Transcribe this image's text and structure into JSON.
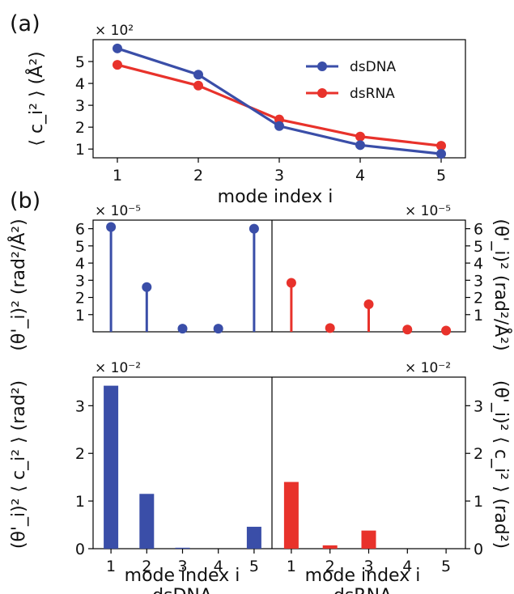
{
  "figure": {
    "panel_a_label": "(a)",
    "panel_b_label": "(b)"
  },
  "chart_data": [
    {
      "id": "a",
      "type": "line",
      "x": [
        1,
        2,
        3,
        4,
        5
      ],
      "series": [
        {
          "name": "dsDNA",
          "color": "#3a4ea8",
          "values": [
            5.6,
            4.4,
            2.05,
            1.18,
            0.78
          ]
        },
        {
          "name": "dsRNA",
          "color": "#e8322b",
          "values": [
            4.85,
            3.9,
            2.35,
            1.57,
            1.15
          ]
        }
      ],
      "xlabel": "mode index i",
      "ylabel": "⟨ c_i² ⟩ (Å²)",
      "multiplier": "× 10²",
      "xticks": [
        "1",
        "2",
        "3",
        "4",
        "5"
      ],
      "yticks": [
        1,
        2,
        3,
        4,
        5
      ],
      "xlim": [
        0.7,
        5.3
      ],
      "ylim": [
        0.6,
        6.0
      ],
      "legend_position": "top-right"
    },
    {
      "id": "b_top_dsDNA",
      "type": "bar",
      "style": "stem",
      "categories": [
        "1",
        "2",
        "3",
        "4",
        "5"
      ],
      "values": [
        6.1,
        2.6,
        0.18,
        0.18,
        6.0
      ],
      "color": "#3a4ea8",
      "ylabel": "(θ'_i)² (rad²/Å²)",
      "multiplier": "× 10⁻⁵",
      "yticks": [
        1,
        2,
        3,
        4,
        5,
        6
      ],
      "ylim": [
        0,
        6.5
      ]
    },
    {
      "id": "b_top_dsRNA",
      "type": "bar",
      "style": "stem",
      "categories": [
        "1",
        "2",
        "3",
        "4",
        "5"
      ],
      "values": [
        2.85,
        0.22,
        1.6,
        0.13,
        0.07
      ],
      "color": "#e8322b",
      "ylabel": "(θ'_i)² (rad²/Å²)",
      "multiplier": "× 10⁻⁵",
      "yticks": [
        1,
        2,
        3,
        4,
        5,
        6
      ],
      "ylim": [
        0,
        6.5
      ]
    },
    {
      "id": "b_bottom_dsDNA",
      "type": "bar",
      "categories": [
        "1",
        "2",
        "3",
        "4",
        "5"
      ],
      "values": [
        3.42,
        1.15,
        0.02,
        0.0,
        0.46
      ],
      "color": "#3a4ea8",
      "xlabel": "mode index i",
      "ylabel": "(θ'_i)² ⟨ c_i² ⟩ (rad²)",
      "multiplier": "× 10⁻²",
      "group_label": "dsDNA",
      "yticks": [
        0,
        1,
        2,
        3
      ],
      "ylim": [
        0,
        3.6
      ]
    },
    {
      "id": "b_bottom_dsRNA",
      "type": "bar",
      "categories": [
        "1",
        "2",
        "3",
        "4",
        "5"
      ],
      "values": [
        1.4,
        0.07,
        0.38,
        0.0,
        0.0
      ],
      "color": "#e8322b",
      "xlabel": "mode index i",
      "ylabel": "(θ'_i)² ⟨ c_i² ⟩ (rad²)",
      "multiplier": "× 10⁻²",
      "group_label": "dsRNA",
      "yticks": [
        0,
        1,
        2,
        3
      ],
      "ylim": [
        0,
        3.6
      ]
    }
  ]
}
